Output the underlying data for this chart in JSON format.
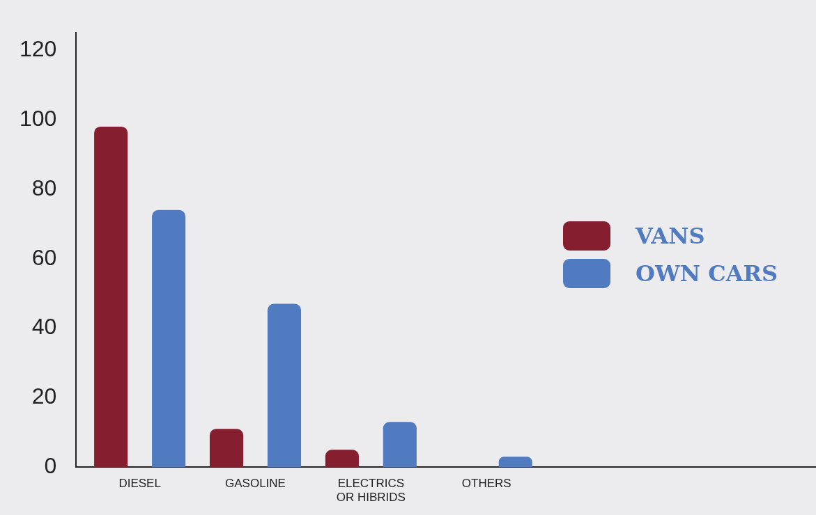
{
  "chart_data": {
    "type": "bar",
    "categories": [
      "DIESEL",
      "GASOLINE",
      "ELECTRICS OR HIBRIDS",
      "OTHERS"
    ],
    "series": [
      {
        "name": "VANS",
        "color": "#851f30",
        "values": [
          98,
          11,
          5,
          0
        ]
      },
      {
        "name": "OWN CARS",
        "color": "#507bc0",
        "values": [
          74,
          47,
          13,
          3
        ]
      }
    ],
    "ylim": [
      0,
      125
    ],
    "yticks": [
      0,
      20,
      40,
      60,
      80,
      100,
      120
    ],
    "grid": false,
    "legend": "right"
  }
}
